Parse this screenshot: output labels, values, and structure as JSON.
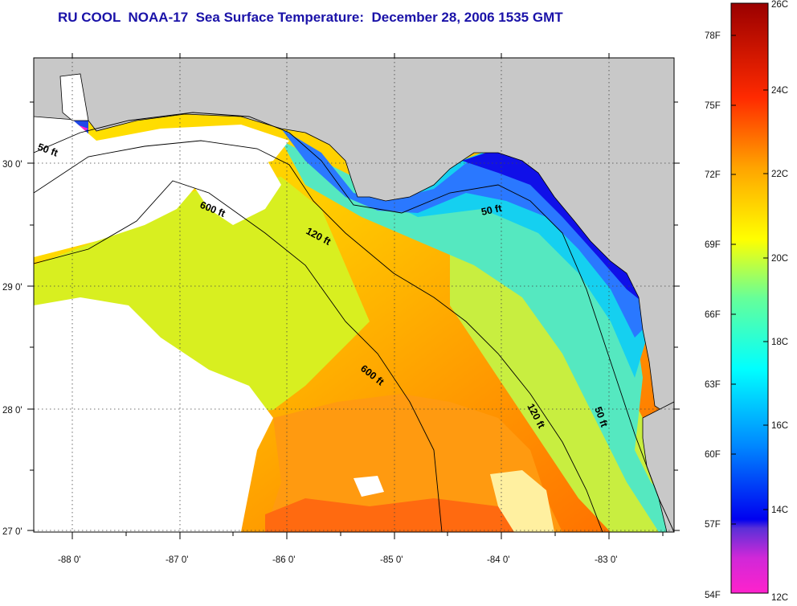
{
  "title": "RU COOL  NOAA-17  Sea Surface Temperature:  December 28, 2006 1535 GMT",
  "map": {
    "longitude_labels": [
      "-88 0'",
      "-87 0'",
      "-86 0'",
      "-85 0'",
      "-84 0'",
      "-83 0'"
    ],
    "latitude_labels": [
      "30 0'",
      "29 0'",
      "28 0'",
      "27 0'"
    ],
    "contour_labels": [
      "50 ft",
      "600 ft",
      "120 ft",
      "50 ft",
      "600 ft",
      "120 ft",
      "50 ft"
    ]
  },
  "colorbar": {
    "fahrenheit_labels": [
      "78F",
      "75F",
      "72F",
      "69F",
      "66F",
      "63F",
      "60F",
      "57F",
      "54F"
    ],
    "celsius_labels": [
      "26C",
      "24C",
      "22C",
      "20C",
      "18C",
      "16C",
      "14C",
      "12C"
    ],
    "colors": [
      "#ff22cc",
      "#7a30d0",
      "#0000f0",
      "#0090ff",
      "#00ffff",
      "#66ff99",
      "#ffff00",
      "#ffa500",
      "#ff2a00",
      "#a00000"
    ]
  },
  "colors": {
    "title": "#1a12a8",
    "land": "#c8c8c8",
    "cloud_no_data": "#ffffff"
  }
}
